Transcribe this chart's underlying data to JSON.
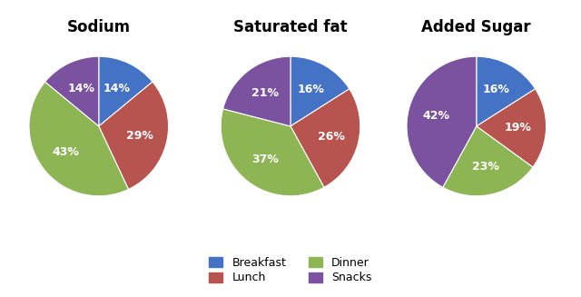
{
  "charts": [
    {
      "title": "Sodium",
      "values": [
        14,
        29,
        43,
        14
      ],
      "labels": [
        "14%",
        "29%",
        "43%",
        "14%"
      ],
      "startangle": 90
    },
    {
      "title": "Saturated fat",
      "values": [
        16,
        26,
        37,
        21
      ],
      "labels": [
        "16%",
        "26%",
        "37%",
        "21%"
      ],
      "startangle": 90
    },
    {
      "title": "Added Sugar",
      "values": [
        16,
        19,
        23,
        42
      ],
      "labels": [
        "16%",
        "19%",
        "23%",
        "42%"
      ],
      "startangle": 90
    }
  ],
  "colors": [
    "#4472C4",
    "#B85450",
    "#8DB554",
    "#7B52A0"
  ],
  "legend_labels": [
    "Breakfast",
    "Lunch",
    "Dinner",
    "Snacks"
  ],
  "legend_colors": [
    "#4472C4",
    "#B85450",
    "#8DB554",
    "#7B52A0"
  ],
  "text_color": "white",
  "background_color": "#ffffff",
  "title_fontsize": 12,
  "label_fontsize": 9
}
